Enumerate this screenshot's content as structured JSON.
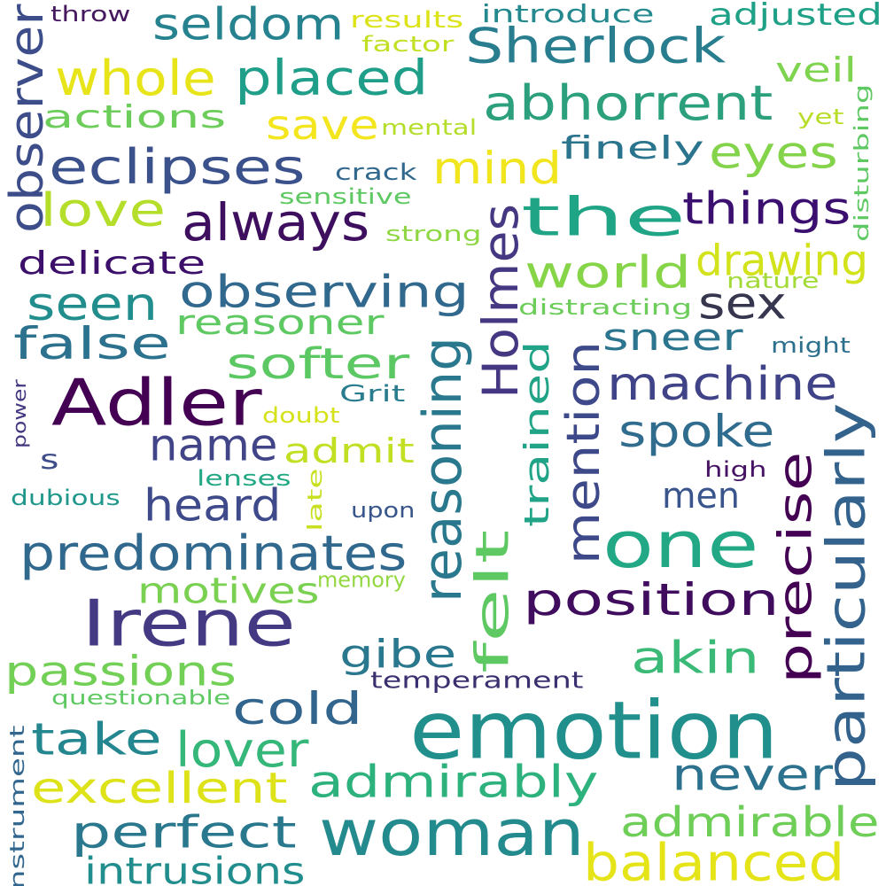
{
  "words": [
    {
      "text": "emotion",
      "color": "#21908d"
    },
    {
      "text": "woman",
      "color": "#238a8d"
    },
    {
      "text": "one",
      "color": "#22a884"
    },
    {
      "text": "Irene",
      "color": "#443983"
    },
    {
      "text": "Adler",
      "color": "#440154"
    },
    {
      "text": "Holmes",
      "color": "#453781"
    },
    {
      "text": "reasoning",
      "color": "#2a788e"
    },
    {
      "text": "particularly",
      "color": "#33638d"
    },
    {
      "text": "precise",
      "color": "#440154"
    },
    {
      "text": "mention",
      "color": "#3e4989"
    },
    {
      "text": "balanced",
      "color": "#e5e419"
    },
    {
      "text": "predominates",
      "color": "#31688e"
    },
    {
      "text": "position",
      "color": "#3f0c5e"
    },
    {
      "text": "observing",
      "color": "#31688e"
    },
    {
      "text": "Sherlock",
      "color": "#287d8e"
    },
    {
      "text": "machine",
      "color": "#404387"
    },
    {
      "text": "eclipses",
      "color": "#3b518b"
    },
    {
      "text": "abhorrent",
      "color": "#2ca07d"
    },
    {
      "text": "admirably",
      "color": "#2db27d"
    },
    {
      "text": "perfect",
      "color": "#2a788e"
    },
    {
      "text": "admirable",
      "color": "#6ece58"
    },
    {
      "text": "excellent",
      "color": "#dde318"
    },
    {
      "text": "lover",
      "color": "#35b779"
    },
    {
      "text": "intrusions",
      "color": "#228d8d"
    },
    {
      "text": "never",
      "color": "#2c718e"
    },
    {
      "text": "akin",
      "color": "#3aba76"
    },
    {
      "text": "felt",
      "color": "#5ec962"
    },
    {
      "text": "heard",
      "color": "#3e4a89"
    },
    {
      "text": "name",
      "color": "#414487"
    },
    {
      "text": "spoke",
      "color": "#2f6c8e"
    },
    {
      "text": "always",
      "color": "#3d0f5e"
    },
    {
      "text": "placed",
      "color": "#1f9e89"
    },
    {
      "text": "seldom",
      "color": "#26828e"
    },
    {
      "text": "whole",
      "color": "#e7e419"
    },
    {
      "text": "world",
      "color": "#86d549"
    },
    {
      "text": "the",
      "color": "#20a486"
    },
    {
      "text": "observer",
      "color": "#3c4d8a"
    },
    {
      "text": "false",
      "color": "#2c728e"
    },
    {
      "text": "seen",
      "color": "#218e8d"
    },
    {
      "text": "softer",
      "color": "#5cc863"
    },
    {
      "text": "cold",
      "color": "#32658e"
    },
    {
      "text": "take",
      "color": "#24868e"
    },
    {
      "text": "passions",
      "color": "#73d056"
    },
    {
      "text": "mind",
      "color": "#f1e51d"
    },
    {
      "text": "eyes",
      "color": "#84d44b"
    },
    {
      "text": "things",
      "color": "#3b0f70"
    },
    {
      "text": "drawing",
      "color": "#d2e21b"
    },
    {
      "text": "sex",
      "color": "#37364f"
    },
    {
      "text": "love",
      "color": "#b5de2b"
    },
    {
      "text": "trained",
      "color": "#20a386"
    },
    {
      "text": "gibe",
      "color": "#2a788e"
    },
    {
      "text": "motives",
      "color": "#7ad151"
    },
    {
      "text": "save",
      "color": "#f4e61e"
    },
    {
      "text": "men",
      "color": "#39558c"
    },
    {
      "text": "sneer",
      "color": "#2b758e"
    },
    {
      "text": "reasoner",
      "color": "#5ec962"
    },
    {
      "text": "delicate",
      "color": "#3c0f6a"
    },
    {
      "text": "actions",
      "color": "#6ccd5a"
    },
    {
      "text": "admit",
      "color": "#c2df23"
    },
    {
      "text": "veil",
      "color": "#7ed34f"
    },
    {
      "text": "finely",
      "color": "#2b748e"
    },
    {
      "text": "adjusted",
      "color": "#1fa187"
    },
    {
      "text": "introduce",
      "color": "#23898e"
    },
    {
      "text": "temperament",
      "color": "#3b2f70"
    },
    {
      "text": "instrument",
      "color": "#31668e"
    },
    {
      "text": "s",
      "color": "#3e4c8a"
    },
    {
      "text": "crack",
      "color": "#31688e"
    },
    {
      "text": "sensitive",
      "color": "#5ec962"
    },
    {
      "text": "strong",
      "color": "#8fd744"
    },
    {
      "text": "distracting",
      "color": "#6ccd5a"
    },
    {
      "text": "nature",
      "color": "#a2da37"
    },
    {
      "text": "might",
      "color": "#2d708e"
    },
    {
      "text": "Grit",
      "color": "#297b8e"
    },
    {
      "text": "doubt",
      "color": "#d5e21a"
    },
    {
      "text": "high",
      "color": "#471365"
    },
    {
      "text": "late",
      "color": "#c8e020"
    },
    {
      "text": "upon",
      "color": "#39568c"
    },
    {
      "text": "lenses",
      "color": "#22a884"
    },
    {
      "text": "memory",
      "color": "#93d741"
    },
    {
      "text": "dubious",
      "color": "#1f988b"
    },
    {
      "text": "questionable",
      "color": "#5ec962"
    },
    {
      "text": "results",
      "color": "#dce319"
    },
    {
      "text": "factor",
      "color": "#c2df23"
    },
    {
      "text": "mental",
      "color": "#b5de2b"
    },
    {
      "text": "yet",
      "color": "#b8de29"
    },
    {
      "text": "disturbing",
      "color": "#5ec962"
    },
    {
      "text": "power",
      "color": "#453882"
    },
    {
      "text": "throw",
      "color": "#46185f"
    }
  ]
}
